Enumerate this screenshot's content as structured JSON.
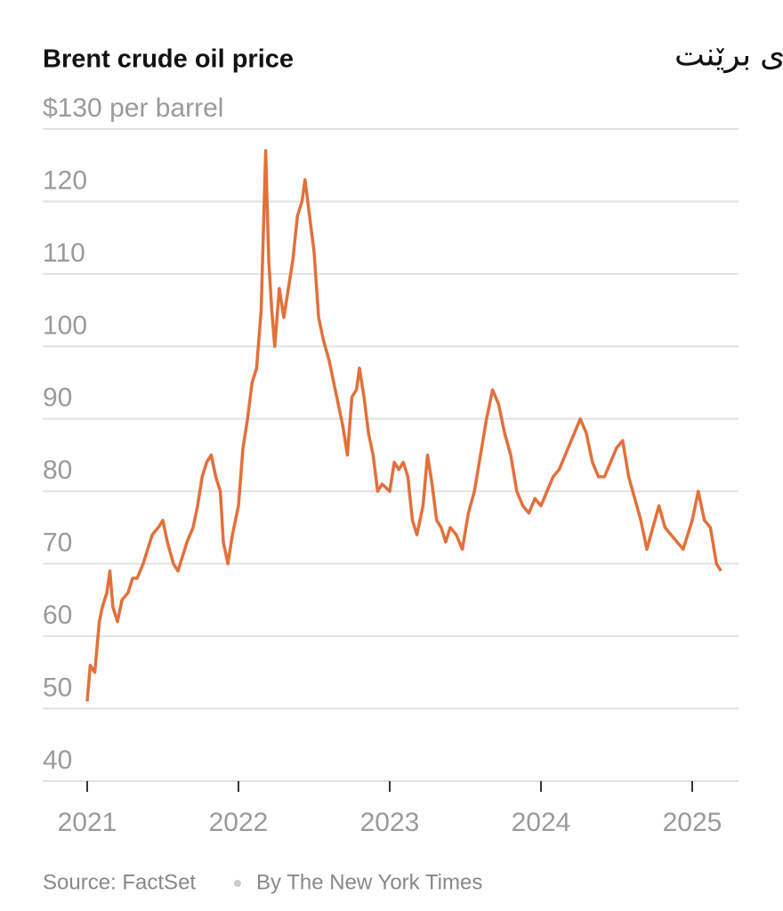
{
  "chart_data": {
    "type": "line",
    "title": "Brent crude oil price",
    "subtitle": "نرخی خاوی برێنت",
    "source": "Source: FactSet",
    "credit": "By The New York Times",
    "color": "#e3703a",
    "grid": true,
    "xlim": [
      2020.706,
      2025.306
    ],
    "xticks": [
      2021,
      2022,
      2023,
      2024,
      2025
    ],
    "ylim": [
      40,
      130
    ],
    "yticks": [
      40,
      50,
      60,
      70,
      80,
      90,
      100,
      110,
      120,
      {
        "value": 130,
        "label": "$130 per barrel"
      }
    ],
    "x": [
      2021.0,
      2021.02,
      2021.05,
      2021.08,
      2021.1,
      2021.13,
      2021.15,
      2021.17,
      2021.2,
      2021.23,
      2021.27,
      2021.3,
      2021.33,
      2021.37,
      2021.4,
      2021.43,
      2021.47,
      2021.5,
      2021.53,
      2021.57,
      2021.6,
      2021.63,
      2021.66,
      2021.7,
      2021.73,
      2021.76,
      2021.79,
      2021.82,
      2021.85,
      2021.88,
      2021.9,
      2021.93,
      2021.96,
      2022.0,
      2022.03,
      2022.06,
      2022.09,
      2022.12,
      2022.15,
      2022.18,
      2022.2,
      2022.22,
      2022.24,
      2022.27,
      2022.3,
      2022.33,
      2022.36,
      2022.39,
      2022.42,
      2022.44,
      2022.47,
      2022.5,
      2022.53,
      2022.56,
      2022.6,
      2022.63,
      2022.66,
      2022.69,
      2022.72,
      2022.75,
      2022.78,
      2022.8,
      2022.83,
      2022.86,
      2022.89,
      2022.92,
      2022.95,
      2023.0,
      2023.03,
      2023.06,
      2023.09,
      2023.12,
      2023.15,
      2023.18,
      2023.22,
      2023.25,
      2023.28,
      2023.31,
      2023.34,
      2023.37,
      2023.4,
      2023.44,
      2023.48,
      2023.52,
      2023.56,
      2023.6,
      2023.64,
      2023.68,
      2023.72,
      2023.76,
      2023.8,
      2023.84,
      2023.88,
      2023.92,
      2023.96,
      2024.0,
      2024.04,
      2024.08,
      2024.12,
      2024.16,
      2024.22,
      2024.26,
      2024.3,
      2024.34,
      2024.38,
      2024.42,
      2024.46,
      2024.5,
      2024.54,
      2024.58,
      2024.62,
      2024.66,
      2024.7,
      2024.74,
      2024.78,
      2024.82,
      2024.86,
      2024.9,
      2024.94,
      2025.0,
      2025.04,
      2025.08,
      2025.12,
      2025.16,
      2025.19
    ],
    "values": [
      51,
      56,
      55,
      62,
      64,
      66,
      69,
      64,
      62,
      65,
      66,
      68,
      68,
      70,
      72,
      74,
      75,
      76,
      73,
      70,
      69,
      71,
      73,
      75,
      78,
      82,
      84,
      85,
      82,
      80,
      73,
      70,
      74,
      78,
      86,
      90,
      95,
      97,
      105,
      127,
      112,
      105,
      100,
      108,
      104,
      108,
      112,
      118,
      120,
      123,
      118,
      113,
      104,
      101,
      98,
      95,
      92,
      89,
      85,
      93,
      94,
      97,
      93,
      88,
      85,
      80,
      81,
      80,
      84,
      83,
      84,
      82,
      76,
      74,
      78,
      85,
      81,
      76,
      75,
      73,
      75,
      74,
      72,
      77,
      80,
      85,
      90,
      94,
      92,
      88,
      85,
      80,
      78,
      77,
      79,
      78,
      80,
      82,
      83,
      85,
      88,
      90,
      88,
      84,
      82,
      82,
      84,
      86,
      87,
      82,
      79,
      76,
      72,
      75,
      78,
      75,
      74,
      73,
      72,
      76,
      80,
      76,
      75,
      70,
      69
    ]
  }
}
